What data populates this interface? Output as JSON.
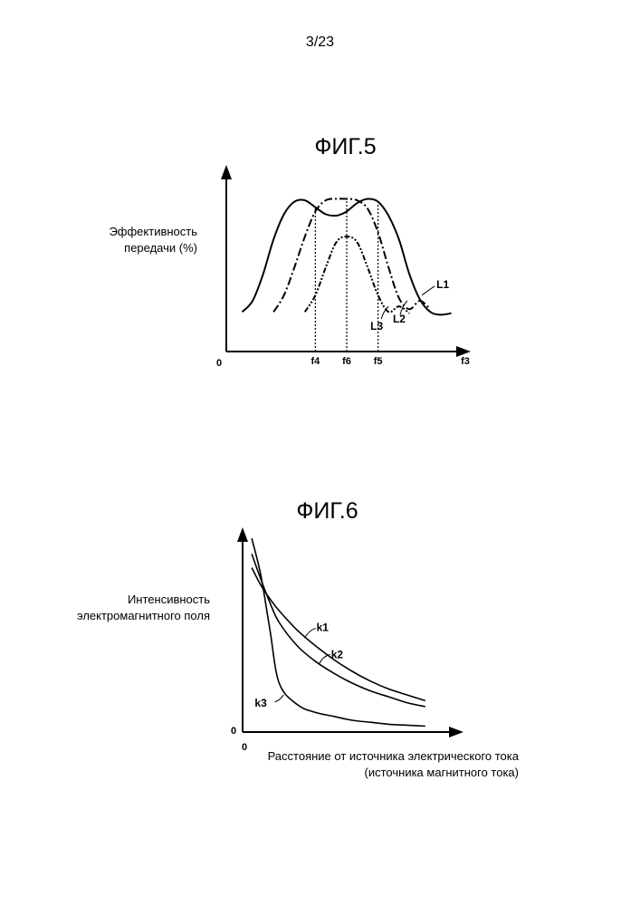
{
  "page_number": "3/23",
  "chart_data": [
    {
      "type": "line",
      "title": "ФИГ.5",
      "ylabel": "Эффективность передачи (%)",
      "xlabel": "f3",
      "origin_label": "0",
      "x_ticks": [
        "f4",
        "f6",
        "f5"
      ],
      "x": [
        0,
        0.5,
        1,
        1.5,
        2,
        2.5,
        3,
        3.5,
        4,
        4.5,
        5,
        5.5,
        6,
        6.5,
        7,
        7.5,
        8,
        8.5,
        9,
        9.5,
        10
      ],
      "x_tick_positions": [
        3.5,
        5.0,
        6.5
      ],
      "ylim": [
        0,
        100
      ],
      "xlim": [
        -0.5,
        10.5
      ],
      "series": [
        {
          "name": "L1",
          "style": "solid",
          "values": [
            18,
            26,
            45,
            70,
            88,
            97,
            98,
            93,
            88,
            87,
            90,
            96,
            99,
            97,
            87,
            70,
            45,
            27,
            18,
            16,
            17
          ]
        },
        {
          "name": "L2",
          "style": "dash-dot",
          "values": [
            null,
            null,
            null,
            18,
            30,
            50,
            72,
            90,
            98,
            99,
            99,
            98,
            92,
            75,
            50,
            28,
            20,
            26,
            20,
            null,
            null
          ]
        },
        {
          "name": "L3",
          "style": "dash-dot-dot",
          "values": [
            null,
            null,
            null,
            null,
            null,
            null,
            18,
            30,
            50,
            68,
            72,
            68,
            50,
            30,
            18,
            22,
            17,
            null,
            null,
            null,
            null
          ]
        }
      ]
    },
    {
      "type": "line",
      "title": "ФИГ.6",
      "ylabel": "Интенсивность электромагнитного поля",
      "xlabel": "Расстояние от источника электрического тока (источника магнитного тока)",
      "origin_label_x": "0",
      "origin_label_y": "0",
      "x": [
        0.5,
        1,
        1.5,
        2,
        3,
        4,
        5,
        6,
        7,
        8,
        9,
        10
      ],
      "xlim": [
        0,
        11
      ],
      "ylim": [
        0,
        100
      ],
      "series": [
        {
          "name": "k1",
          "values": [
            84,
            75,
            68,
            62,
            52,
            44,
            37,
            31,
            26,
            22,
            19,
            16
          ]
        },
        {
          "name": "k2",
          "values": [
            91,
            78,
            66,
            56,
            44,
            36,
            30,
            25,
            21,
            18,
            15,
            13
          ]
        },
        {
          "name": "k3",
          "values": [
            99,
            80,
            52,
            25,
            14,
            10,
            8,
            6,
            5,
            4,
            3.5,
            3
          ]
        }
      ]
    }
  ]
}
